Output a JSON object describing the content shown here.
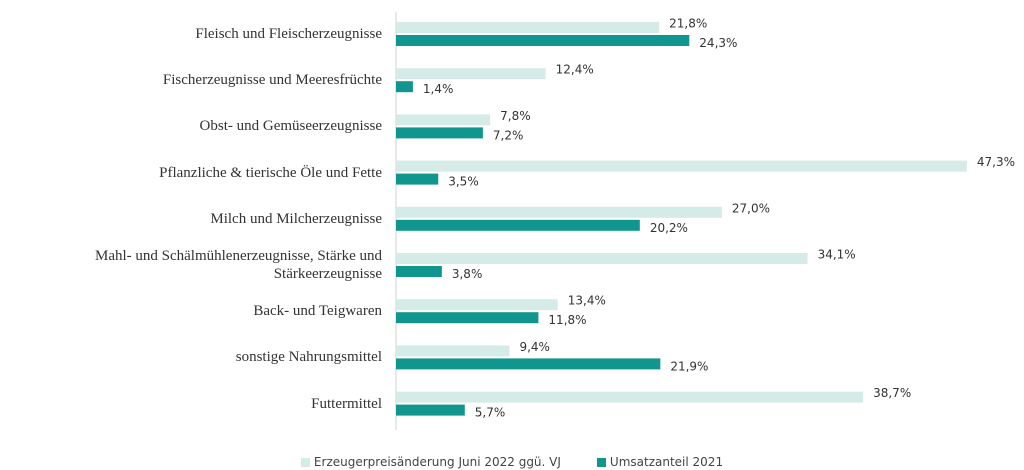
{
  "chart_data": {
    "type": "bar",
    "orientation": "horizontal",
    "categories": [
      "Fleisch und Fleischerzeugnisse",
      "Fischerzeugnisse und Meeresfrüchte",
      "Obst- und Gemüseerzeugnisse",
      "Pflanzliche & tierische Öle und Fette",
      "Milch und Milcherzeugnisse",
      "Mahl- und Schälmühlenerzeugnisse, Stärke und Stärkeerzeugnisse",
      "Back- und Teigwaren",
      "sonstige Nahrungsmittel",
      "Futtermittel"
    ],
    "series": [
      {
        "name": "Erzeugerpreisänderung Juni 2022 ggü. VJ",
        "color": "#d5ebe7",
        "values": [
          21.8,
          12.4,
          7.8,
          47.3,
          27.0,
          34.1,
          13.4,
          9.4,
          38.7
        ],
        "value_labels": [
          "21,8%",
          "12,4%",
          "7,8%",
          "47,3%",
          "27,0%",
          "34,1%",
          "13,4%",
          "9,4%",
          "38,7%"
        ]
      },
      {
        "name": "Umsatzanteil 2021",
        "color": "#11968f",
        "values": [
          24.3,
          1.4,
          7.2,
          3.5,
          20.2,
          3.8,
          11.8,
          21.9,
          5.7
        ],
        "value_labels": [
          "24,3%",
          "1,4%",
          "7,2%",
          "3,5%",
          "20,2%",
          "3,8%",
          "11,8%",
          "21,9%",
          "5,7%"
        ]
      }
    ],
    "legend": "bottom"
  }
}
